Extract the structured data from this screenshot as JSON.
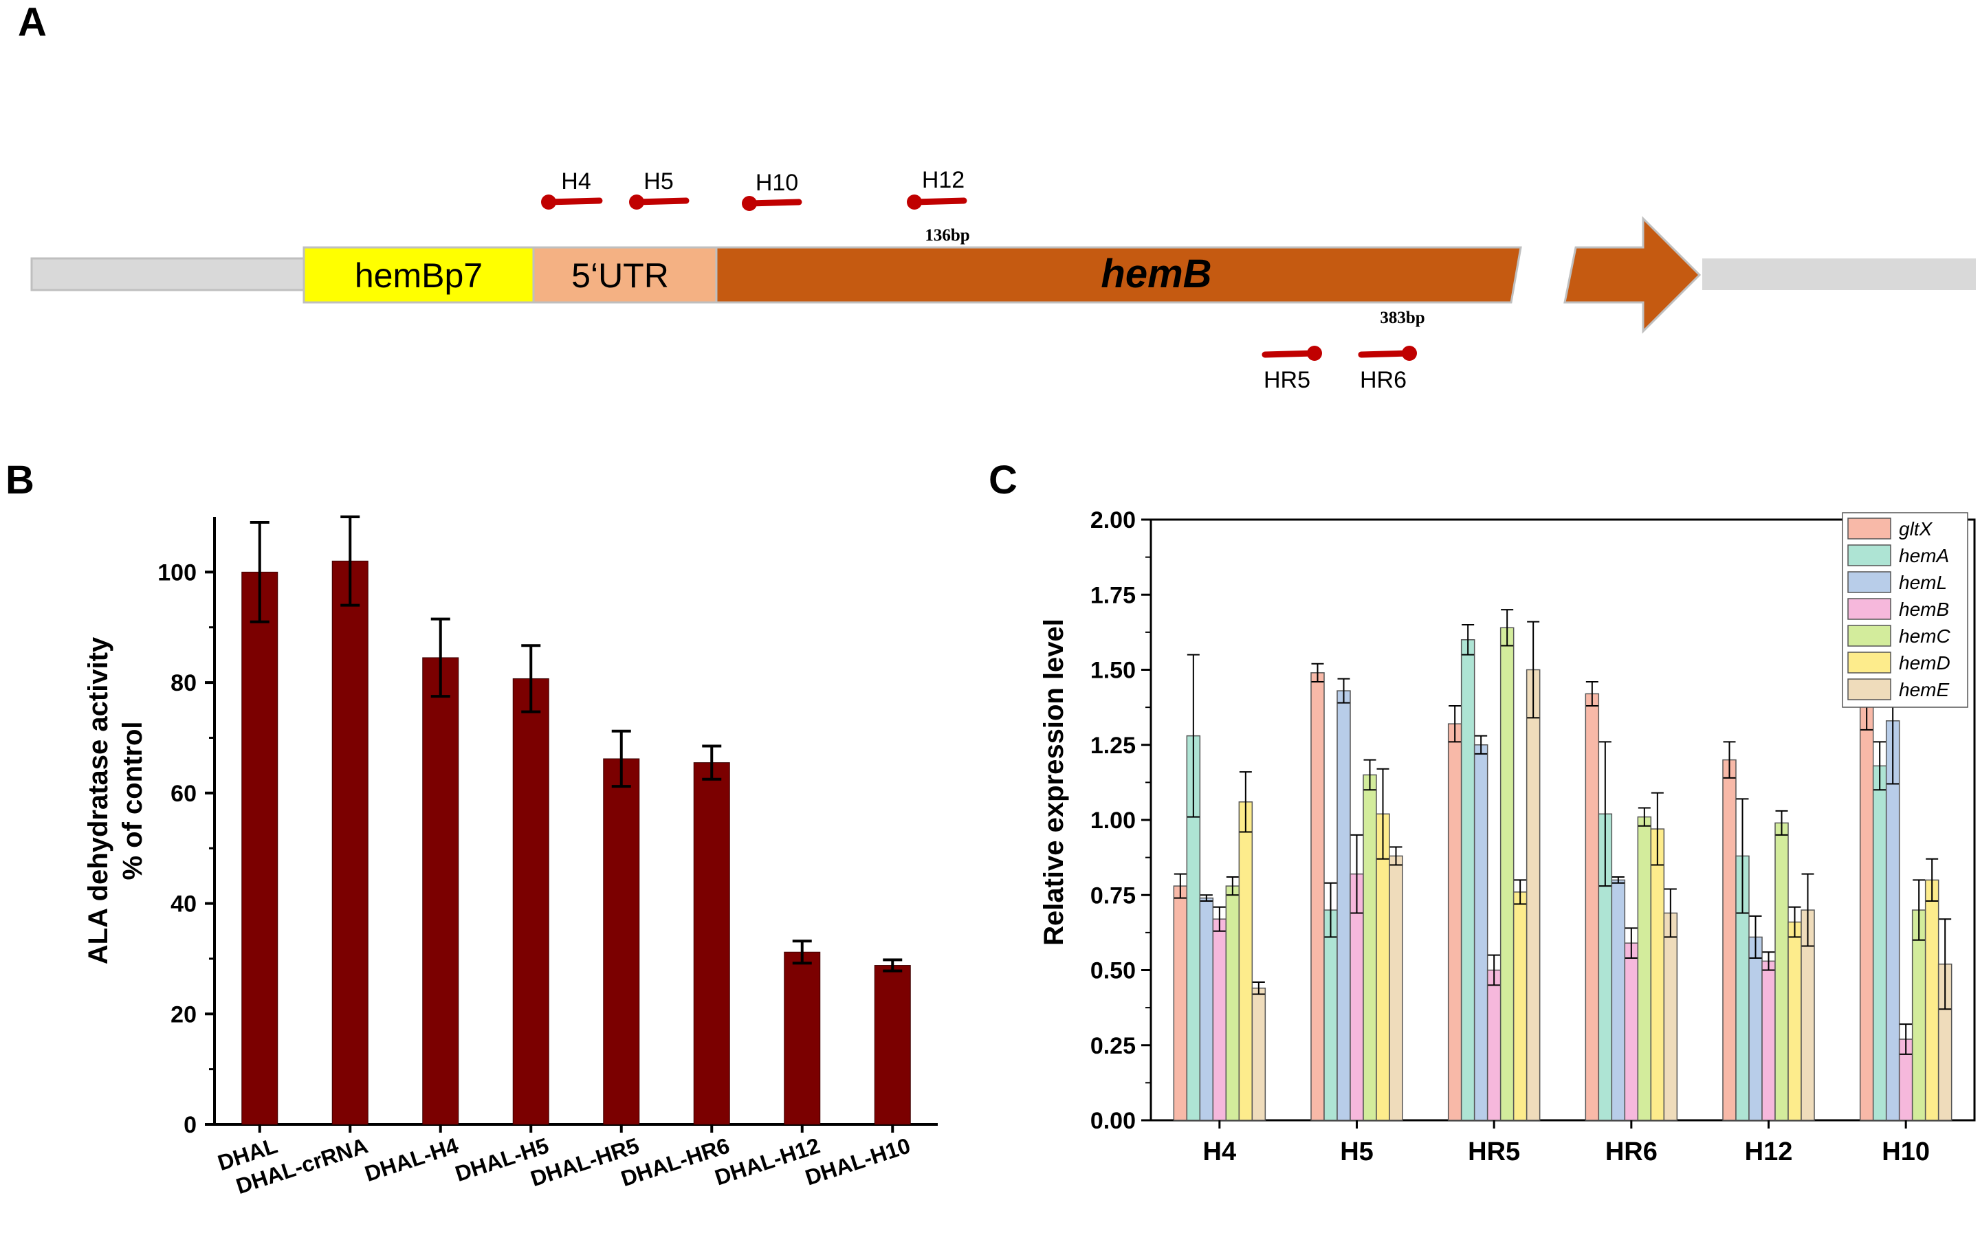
{
  "panel_a": {
    "letter": "A",
    "promoter_label": "hemBp7",
    "utr_label": "5‘UTR",
    "gene_label": "hemB",
    "bp_top": "136bp",
    "bp_bottom": "383bp",
    "guides_top": [
      "H4",
      "H5",
      "H10",
      "H12"
    ],
    "guides_bottom": [
      "HR5",
      "HR6"
    ],
    "colors": {
      "promoter": "#ffff00",
      "utr": "#f4b183",
      "gene": "#c55a11",
      "flank": "#d9d9d9",
      "guide": "#c00000"
    }
  },
  "chart_data": [
    {
      "panel": "B",
      "type": "bar",
      "ylabel_line1": "ALA  dehydratase activity",
      "ylabel_line2": "% of control",
      "xlabel": "",
      "ylim": [
        0,
        110
      ],
      "yticks": [
        0,
        20,
        40,
        60,
        80,
        100
      ],
      "categories": [
        "DHAL",
        "DHAL-crRNA",
        "DHAL-H4",
        "DHAL-H5",
        "DHAL-HR5",
        "DHAL-HR6",
        "DHAL-H12",
        "DHAL-H10"
      ],
      "values": [
        100,
        102,
        84.5,
        80.7,
        66.2,
        65.5,
        31.2,
        28.8
      ],
      "errors": [
        9,
        8,
        7,
        6,
        5,
        3,
        2,
        1
      ],
      "color": "#7b0000"
    },
    {
      "panel": "C",
      "type": "bar",
      "ylabel": "Relative expression level",
      "xlabel": "",
      "ylim": [
        0,
        2.0
      ],
      "yticks": [
        "0.00",
        "0.25",
        "0.50",
        "0.75",
        "1.00",
        "1.25",
        "1.50",
        "1.75",
        "2.00"
      ],
      "legend_position": "top-right",
      "categories": [
        "H4",
        "H5",
        "HR5",
        "HR6",
        "H12",
        "H10"
      ],
      "series": [
        {
          "name": "gltX",
          "color": "#f8b9a8",
          "values": [
            0.78,
            1.49,
            1.32,
            1.42,
            1.2,
            1.49
          ],
          "errors": [
            0.04,
            0.03,
            0.06,
            0.04,
            0.06,
            0.19
          ]
        },
        {
          "name": "hemA",
          "color": "#aee4d4",
          "values": [
            1.28,
            0.7,
            1.6,
            1.02,
            0.88,
            1.18
          ],
          "errors": [
            0.27,
            0.09,
            0.05,
            0.24,
            0.19,
            0.08
          ]
        },
        {
          "name": "hemL",
          "color": "#b8cde9",
          "values": [
            0.74,
            1.43,
            1.25,
            0.8,
            0.61,
            1.33
          ],
          "errors": [
            0.01,
            0.04,
            0.03,
            0.01,
            0.07,
            0.21
          ]
        },
        {
          "name": "hemB",
          "color": "#f6b8dc",
          "values": [
            0.67,
            0.82,
            0.5,
            0.59,
            0.53,
            0.27
          ],
          "errors": [
            0.04,
            0.13,
            0.05,
            0.05,
            0.03,
            0.05
          ]
        },
        {
          "name": "hemC",
          "color": "#d3ec9c",
          "values": [
            0.78,
            1.15,
            1.64,
            1.01,
            0.99,
            0.7
          ],
          "errors": [
            0.03,
            0.05,
            0.06,
            0.03,
            0.04,
            0.1
          ]
        },
        {
          "name": "hemD",
          "color": "#fdec8c",
          "values": [
            1.06,
            1.02,
            0.76,
            0.97,
            0.66,
            0.8
          ],
          "errors": [
            0.1,
            0.15,
            0.04,
            0.12,
            0.05,
            0.07
          ]
        },
        {
          "name": "hemE",
          "color": "#efdcbb",
          "values": [
            0.44,
            0.88,
            1.5,
            0.69,
            0.7,
            0.52
          ],
          "errors": [
            0.02,
            0.03,
            0.16,
            0.08,
            0.12,
            0.15
          ]
        }
      ]
    }
  ],
  "panel_b": {
    "letter": "B"
  },
  "panel_c": {
    "letter": "C"
  }
}
